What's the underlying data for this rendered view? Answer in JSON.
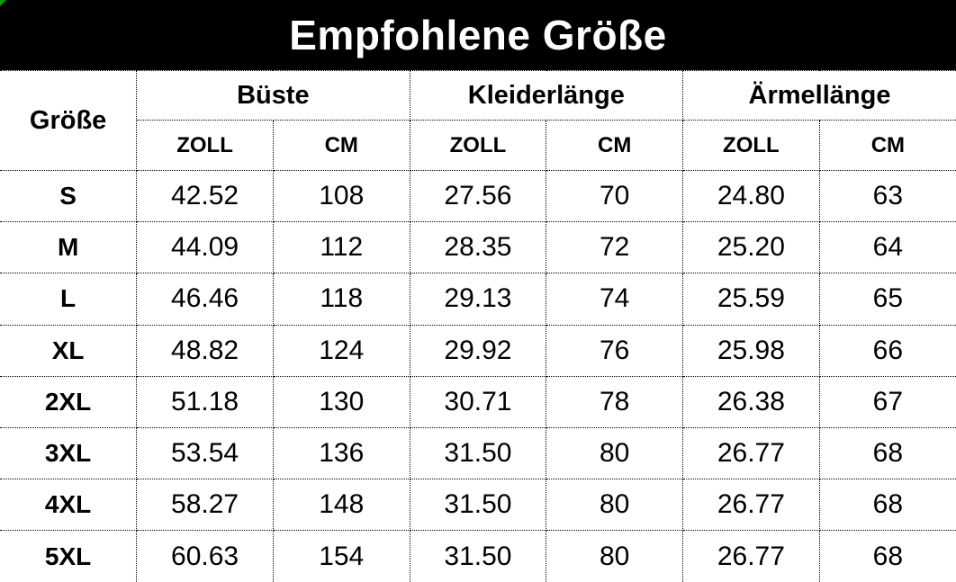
{
  "title": "Empfohlene Größe",
  "colors": {
    "banner_bg": "#000000",
    "banner_text": "#ffffff",
    "corner_marker_green": "#00a000",
    "border": "#000000",
    "text": "#000000"
  },
  "table": {
    "size_header": "Größe",
    "groups": [
      {
        "label": "Büste"
      },
      {
        "label": "Kleiderlänge"
      },
      {
        "label": "Ärmellänge"
      }
    ],
    "unit_headers": [
      "ZOLL",
      "CM"
    ],
    "rows": [
      {
        "size": "S",
        "values": [
          "42.52",
          "108",
          "27.56",
          "70",
          "24.80",
          "63"
        ]
      },
      {
        "size": "M",
        "values": [
          "44.09",
          "112",
          "28.35",
          "72",
          "25.20",
          "64"
        ]
      },
      {
        "size": "L",
        "values": [
          "46.46",
          "118",
          "29.13",
          "74",
          "25.59",
          "65"
        ]
      },
      {
        "size": "XL",
        "values": [
          "48.82",
          "124",
          "29.92",
          "76",
          "25.98",
          "66"
        ]
      },
      {
        "size": "2XL",
        "values": [
          "51.18",
          "130",
          "30.71",
          "78",
          "26.38",
          "67"
        ]
      },
      {
        "size": "3XL",
        "values": [
          "53.54",
          "136",
          "31.50",
          "80",
          "26.77",
          "68"
        ]
      },
      {
        "size": "4XL",
        "values": [
          "58.27",
          "148",
          "31.50",
          "80",
          "26.77",
          "68"
        ]
      },
      {
        "size": "5XL",
        "values": [
          "60.63",
          "154",
          "31.50",
          "80",
          "26.77",
          "68"
        ]
      }
    ]
  },
  "chart_data": {
    "type": "table",
    "title": "Empfohlene Größe",
    "columns": [
      "Größe",
      "Büste ZOLL",
      "Büste CM",
      "Kleiderlänge ZOLL",
      "Kleiderlänge CM",
      "Ärmellänge ZOLL",
      "Ärmellänge CM"
    ],
    "rows": [
      [
        "S",
        42.52,
        108,
        27.56,
        70,
        24.8,
        63
      ],
      [
        "M",
        44.09,
        112,
        28.35,
        72,
        25.2,
        64
      ],
      [
        "L",
        46.46,
        118,
        29.13,
        74,
        25.59,
        65
      ],
      [
        "XL",
        48.82,
        124,
        29.92,
        76,
        25.98,
        66
      ],
      [
        "2XL",
        51.18,
        130,
        30.71,
        78,
        26.38,
        67
      ],
      [
        "3XL",
        53.54,
        136,
        31.5,
        80,
        26.77,
        68
      ],
      [
        "4XL",
        58.27,
        148,
        31.5,
        80,
        26.77,
        68
      ],
      [
        "5XL",
        60.63,
        154,
        31.5,
        80,
        26.77,
        68
      ]
    ]
  }
}
